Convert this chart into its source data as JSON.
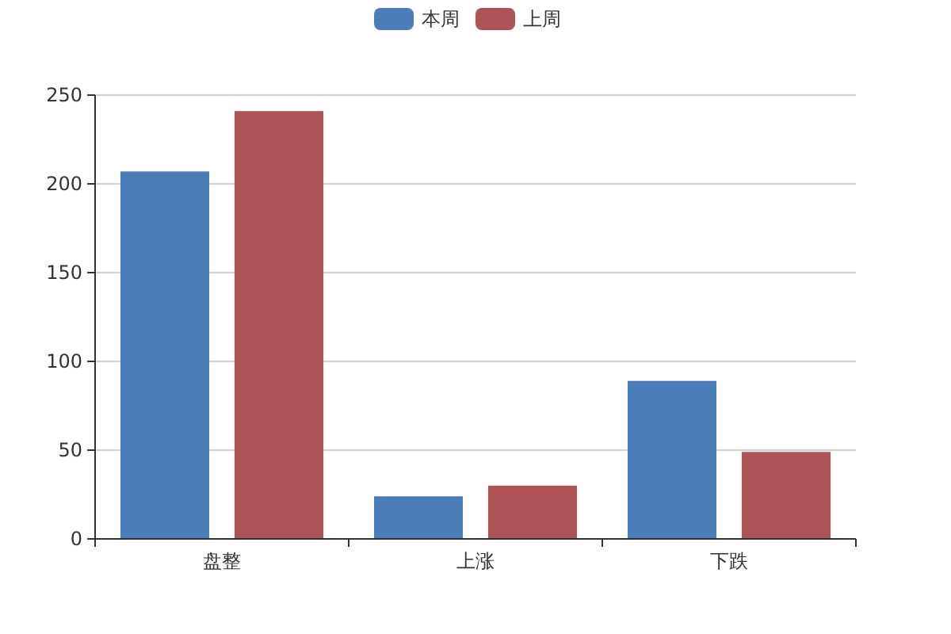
{
  "chart_data": {
    "type": "bar",
    "categories": [
      "盘整",
      "上涨",
      "下跌"
    ],
    "series": [
      {
        "name": "本周",
        "color": "#4b7dbb",
        "values": [
          207,
          24,
          89
        ]
      },
      {
        "name": "上周",
        "color": "#ae5357",
        "values": [
          241,
          30,
          49
        ]
      }
    ],
    "ylim": [
      0,
      250
    ],
    "yticks": [
      0,
      50,
      100,
      150,
      200,
      250
    ],
    "grid": "y",
    "legend": "top"
  }
}
